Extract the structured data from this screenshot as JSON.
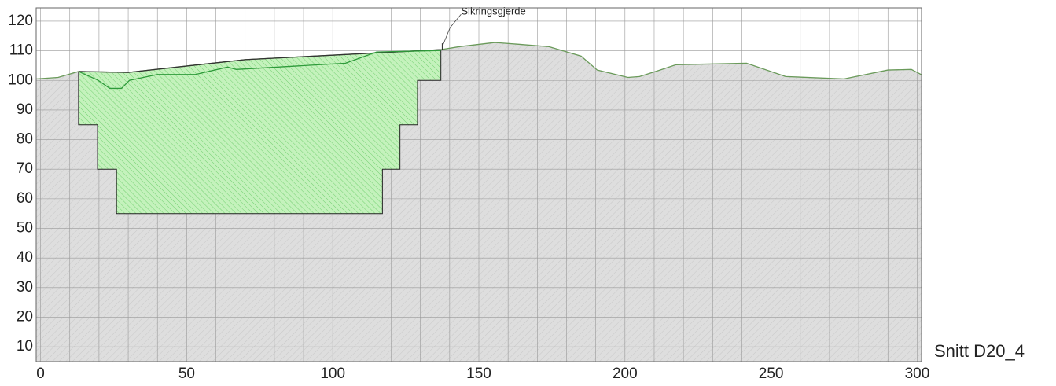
{
  "chart_data": {
    "type": "section",
    "label": "Snitt D20_4",
    "annotation": {
      "text": "Sikringsgjerde",
      "x": 138,
      "y": 110.4
    },
    "xlim": [
      -1.5,
      301.5
    ],
    "ylim": [
      5,
      124.5
    ],
    "xticks": [
      0,
      50,
      100,
      150,
      200,
      250,
      300
    ],
    "xgrid": [
      0,
      10,
      20,
      30,
      40,
      50,
      60,
      70,
      80,
      90,
      100,
      110,
      120,
      130,
      140,
      150,
      160,
      170,
      180,
      190,
      200,
      210,
      220,
      230,
      240,
      250,
      260,
      270,
      280,
      290,
      300
    ],
    "yticks": [
      10,
      20,
      30,
      40,
      50,
      60,
      70,
      80,
      90,
      100,
      110,
      120
    ],
    "grid": true,
    "ground": {
      "color": "#6a9a5a",
      "fill": "#dcdcdc",
      "x": [
        -1.5,
        6,
        13,
        30,
        70,
        137,
        143.4,
        155.5,
        163.6,
        174,
        185,
        190.5,
        201,
        205,
        212,
        217.5,
        241.6,
        255,
        275,
        290,
        298,
        301.5
      ],
      "y": [
        100.5,
        101,
        103,
        102.7,
        107,
        110.4,
        111.4,
        112.8,
        112.2,
        111.4,
        108.2,
        103.5,
        101,
        101.3,
        103.5,
        105.3,
        105.8,
        101.3,
        100.5,
        103.5,
        103.7,
        101.9
      ]
    },
    "excavation": {
      "color": "#3cb043",
      "fill": "#b8f0b0",
      "x": [
        13,
        13,
        19.5,
        19.5,
        26,
        26,
        117,
        117,
        123,
        123,
        129,
        129,
        137,
        137,
        70,
        30
      ],
      "y": [
        103,
        85,
        85,
        70,
        70,
        55,
        55,
        70,
        70,
        85,
        85,
        100,
        100,
        110.4,
        107,
        102.7
      ]
    },
    "new_surface": {
      "color": "#2e9b3a",
      "x": [
        13,
        19.6,
        23.7,
        27.7,
        30.4,
        40,
        53,
        64,
        67,
        104.4,
        115,
        137
      ],
      "y": [
        103,
        100.1,
        97.3,
        97.3,
        100,
        102,
        102,
        104.5,
        103.7,
        105.8,
        109.6,
        110.1
      ]
    },
    "original_surface": {
      "color": "#333333",
      "x": [
        13,
        30,
        70,
        137
      ],
      "y": [
        103,
        102.7,
        107,
        110.4
      ]
    }
  }
}
